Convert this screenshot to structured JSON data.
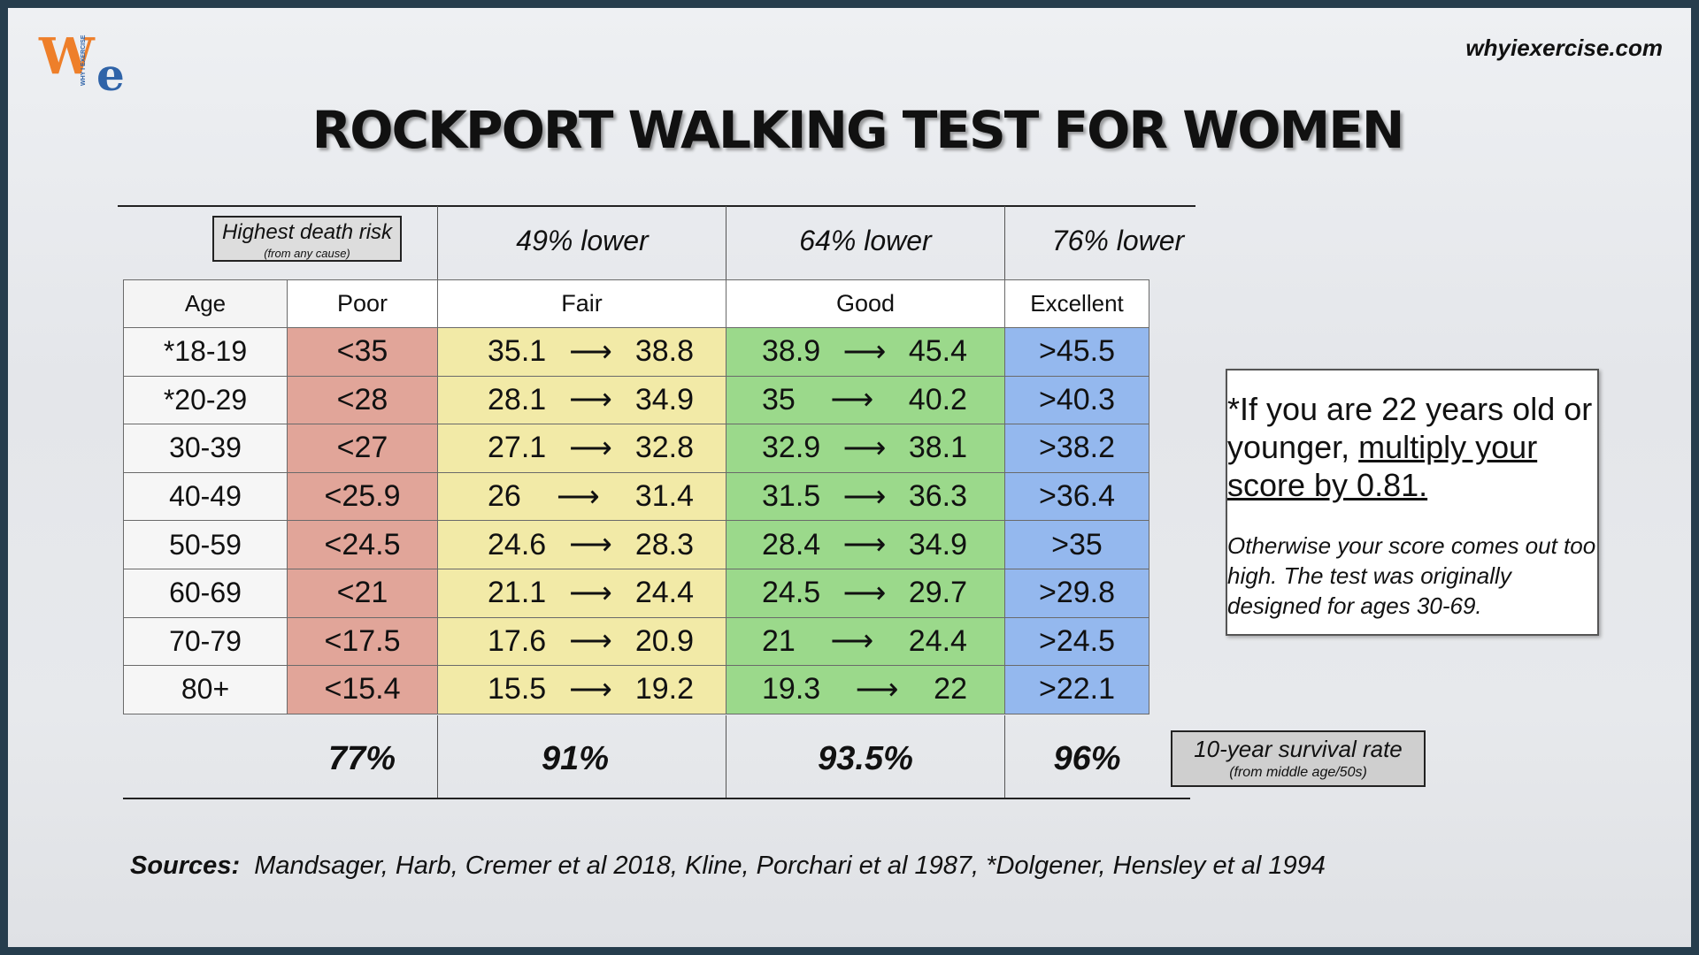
{
  "site": "whyiexercise.com",
  "logo": {
    "letter1": "W",
    "letter2": "e",
    "tagline": "WHY I EXERCISE"
  },
  "title": "Rockport walking test for women",
  "risk_label": {
    "title": "Highest death risk",
    "subtitle": "(from any cause)"
  },
  "lower": [
    "49% lower",
    "64% lower",
    "76% lower"
  ],
  "columns": [
    "Age",
    "Poor",
    "Fair",
    "Good",
    "Excellent"
  ],
  "rows": [
    {
      "age": "*18-19",
      "poor": "<35",
      "fair_from": "35.1",
      "fair_to": "38.8",
      "good_from": "38.9",
      "good_to": "45.4",
      "excellent": ">45.5"
    },
    {
      "age": "*20-29",
      "poor": "<28",
      "fair_from": "28.1",
      "fair_to": "34.9",
      "good_from": "35",
      "good_to": "40.2",
      "excellent": ">40.3"
    },
    {
      "age": "30-39",
      "poor": "<27",
      "fair_from": "27.1",
      "fair_to": "32.8",
      "good_from": "32.9",
      "good_to": "38.1",
      "excellent": ">38.2"
    },
    {
      "age": "40-49",
      "poor": "<25.9",
      "fair_from": "26",
      "fair_to": "31.4",
      "good_from": "31.5",
      "good_to": "36.3",
      "excellent": ">36.4"
    },
    {
      "age": "50-59",
      "poor": "<24.5",
      "fair_from": "24.6",
      "fair_to": "28.3",
      "good_from": "28.4",
      "good_to": "34.9",
      "excellent": ">35"
    },
    {
      "age": "60-69",
      "poor": "<21",
      "fair_from": "21.1",
      "fair_to": "24.4",
      "good_from": "24.5",
      "good_to": "29.7",
      "excellent": ">29.8"
    },
    {
      "age": "70-79",
      "poor": "<17.5",
      "fair_from": "17.6",
      "fair_to": "20.9",
      "good_from": "21",
      "good_to": "24.4",
      "excellent": ">24.5"
    },
    {
      "age": "80+",
      "poor": "<15.4",
      "fair_from": "15.5",
      "fair_to": "19.2",
      "good_from": "19.3",
      "good_to": "22",
      "excellent": ">22.1"
    }
  ],
  "survival": [
    "77%",
    "91%",
    "93.5%",
    "96%"
  ],
  "survival_label": {
    "title": "10-year survival rate",
    "subtitle": "(from middle age/50s)"
  },
  "note": {
    "line1": "*If you are 22 years old or younger, ",
    "line1_underlined": "multiply your score by 0.81.",
    "line2": "Otherwise your score comes out too high.  The test was originally designed for ages 30-69."
  },
  "sources": {
    "label": "Sources:",
    "text": "Mandsager, Harb, Cremer et al 2018, Kline, Porchari et al 1987, *Dolgener, Hensley et al 1994"
  },
  "colors": {
    "poor": "#e1a599",
    "fair": "#f2eaa7",
    "good": "#9bd98b",
    "excellent": "#94b8ee",
    "frame": "#263d4d"
  }
}
